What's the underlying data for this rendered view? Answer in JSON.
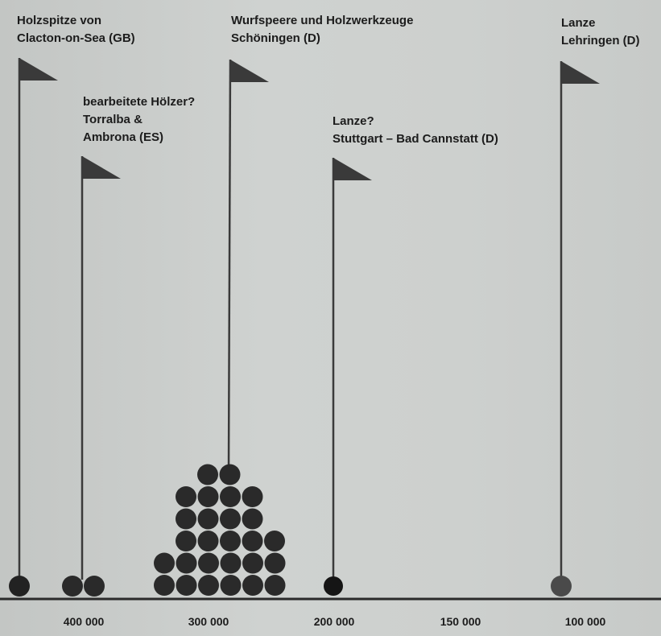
{
  "flags": [
    {
      "id": "clacton",
      "lines": [
        "Holzspitze von",
        "Clacton-on-Sea (GB)"
      ]
    },
    {
      "id": "torralba",
      "lines": [
        "bearbeitete Hölzer?",
        "Torralba &",
        "Ambrona (ES)"
      ]
    },
    {
      "id": "schoeningen",
      "lines": [
        "Wurfspeere und Holzwerkzeuge",
        "Schöningen (D)"
      ]
    },
    {
      "id": "stuttgart",
      "lines": [
        "Lanze?",
        "Stuttgart – Bad Cannstatt (D)"
      ]
    },
    {
      "id": "lehringen",
      "lines": [
        "Lanze",
        "Lehringen (D)"
      ]
    }
  ],
  "axis": {
    "ticks": [
      "400 000",
      "300 000",
      "200 000",
      "150 000",
      "100 000"
    ]
  },
  "colors": {
    "background": "#cbcecc",
    "ink": "#1c1c1c",
    "flag": "#3a3a3a",
    "marker": "#2a2a2a",
    "marker_light": "#4a4a4a"
  }
}
